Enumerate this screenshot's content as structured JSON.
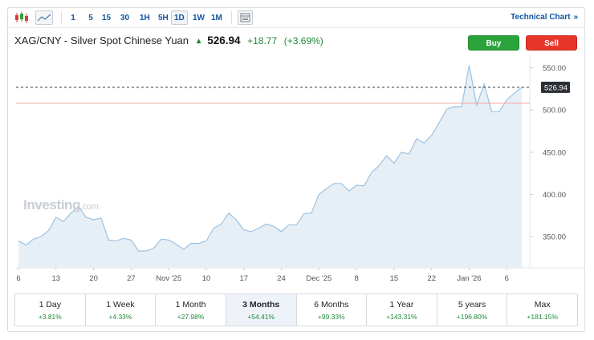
{
  "toolbar": {
    "chart_type_icons": [
      "candlestick-icon",
      "area-chart-icon"
    ],
    "ranges": [
      {
        "label": "1",
        "active": false
      },
      {
        "label": "5",
        "active": false
      },
      {
        "label": "15",
        "active": false
      },
      {
        "label": "30",
        "active": false
      },
      {
        "label": "1H",
        "active": false
      },
      {
        "label": "5H",
        "active": false
      },
      {
        "label": "1D",
        "active": true
      },
      {
        "label": "1W",
        "active": false
      },
      {
        "label": "1M",
        "active": false
      }
    ],
    "settings_icon": "chart-settings-icon",
    "technical_chart_label": "Technical Chart",
    "technical_chart_arrow": "»"
  },
  "header": {
    "instrument": "XAG/CNY - Silver Spot Chinese Yuan",
    "last_price": "526.94",
    "change_abs": "+18.77",
    "change_pct": "(+3.69%)",
    "up_color": "#1f8a3a",
    "buy_label": "Buy",
    "sell_label": "Sell",
    "buy_color": "#2aa33b",
    "sell_color": "#e8362a"
  },
  "watermark": {
    "brand": "Investing",
    "suffix": ".com"
  },
  "chart_data": {
    "type": "area",
    "y_ticks": [
      "550.00",
      "500.00",
      "450.00",
      "400.00",
      "350.00"
    ],
    "y_tick_values": [
      550,
      500,
      450,
      400,
      350
    ],
    "x_tick_labels": [
      "6",
      "13",
      "20",
      "27",
      "Nov '25",
      "10",
      "17",
      "24",
      "Dec '25",
      "8",
      "15",
      "22",
      "Jan '26",
      "6"
    ],
    "x_tick_index": [
      0,
      5,
      10,
      15,
      20,
      25,
      30,
      35,
      40,
      45,
      50,
      55,
      60,
      65
    ],
    "last_price_label": "526.94",
    "last_price": 526.94,
    "previous_close": 508.17,
    "ylim": [
      313,
      562
    ],
    "line_color": "#9cc3e2",
    "fill_color": "#e6eef6",
    "prev_close_color": "#f3a3a3",
    "values": [
      345,
      340,
      347,
      350,
      357,
      373,
      368,
      378,
      386,
      373,
      370,
      372,
      346,
      345,
      348,
      346,
      333,
      333,
      336,
      347,
      346,
      341,
      335,
      342,
      342,
      345,
      360,
      365,
      378,
      370,
      358,
      356,
      360,
      365,
      362,
      356,
      364,
      364,
      377,
      378,
      400,
      407,
      413,
      413,
      404,
      411,
      410,
      426,
      434,
      446,
      437,
      450,
      448,
      466,
      461,
      470,
      485,
      501,
      504,
      504,
      553,
      506,
      531,
      498,
      498,
      512,
      520,
      527
    ]
  },
  "range_tabs": [
    {
      "label": "1 Day",
      "change": "+3.81%",
      "active": false
    },
    {
      "label": "1 Week",
      "change": "+4.33%",
      "active": false
    },
    {
      "label": "1 Month",
      "change": "+27.98%",
      "active": false
    },
    {
      "label": "3 Months",
      "change": "+54.41%",
      "active": true
    },
    {
      "label": "6 Months",
      "change": "+99.33%",
      "active": false
    },
    {
      "label": "1 Year",
      "change": "+143.31%",
      "active": false
    },
    {
      "label": "5 years",
      "change": "+196.80%",
      "active": false
    },
    {
      "label": "Max",
      "change": "+181.15%",
      "active": false
    }
  ]
}
